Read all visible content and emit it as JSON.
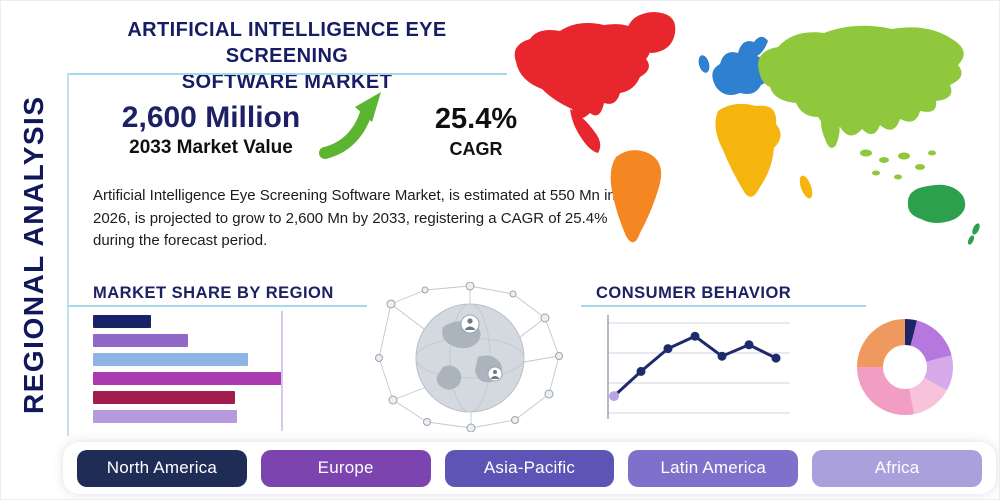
{
  "page": {
    "title_lines": [
      "ARTIFICIAL INTELLIGENCE EYE SCREENING",
      "SOFTWARE MARKET"
    ],
    "vertical_label": "REGIONAL ANALYSIS",
    "description": "Artificial Intelligence Eye Screening Software Market, is estimated at 550 Mn in 2026, is projected to grow to 2,600 Mn by 2033, registering a CAGR of 25.4% during the forecast period."
  },
  "stats": {
    "market_value": "2,600 Million",
    "market_value_caption": "2033 Market Value",
    "cagr": "25.4%",
    "cagr_caption": "CAGR",
    "growth_icon": "arrow-up-right-icon",
    "arrow_green": "#5cb531"
  },
  "sections": {
    "market_share": {
      "title": "MARKET SHARE BY REGION"
    },
    "consumer_behavior": {
      "title": "CONSUMER BEHAVIOR"
    }
  },
  "theme": {
    "navy": "#1b2164",
    "rule_light_blue": "#a6d9ec",
    "text": "#1c1c1c"
  },
  "legend": {
    "items": [
      {
        "label": "North America",
        "color": "#1f2c56"
      },
      {
        "label": "Europe",
        "color": "#7b44ae"
      },
      {
        "label": "Asia-Pacific",
        "color": "#5d55b5"
      },
      {
        "label": "Latin America",
        "color": "#7f70cc"
      },
      {
        "label": "Africa",
        "color": "#a9a0dc"
      }
    ]
  },
  "map": {
    "colors": {
      "north_america": "#e8262d",
      "central_america": "#e8262d",
      "greenland": "#e8262d",
      "south_america": "#f58723",
      "europe": "#2f80d0",
      "uk": "#2f80d0",
      "africa": "#f6b40e",
      "madagascar": "#f6b40e",
      "asia": "#90c83d",
      "india": "#90c83d",
      "se_asia": "#90c83d",
      "japan": "#90c83d",
      "australia": "#2da04e",
      "new_zealand": "#2da04e"
    }
  },
  "chart_data": [
    {
      "id": "market_share_bars",
      "type": "bar",
      "title": "Market Share by Region",
      "orientation": "horizontal",
      "categories": [
        "",
        "",
        "",
        "",
        "",
        ""
      ],
      "values": [
        26,
        43,
        70,
        85,
        64,
        65
      ],
      "xlim": [
        0,
        100
      ],
      "colors": [
        "#1b2368",
        "#9068c8",
        "#8fb4e6",
        "#ab3ab0",
        "#a11d4e",
        "#b79ade"
      ],
      "gridline_at": 85,
      "legend_position": "none"
    },
    {
      "id": "consumer_behavior_line",
      "type": "line",
      "title": "Consumer Behavior",
      "x": [
        1,
        2,
        3,
        4,
        5,
        6,
        7
      ],
      "values": [
        22,
        48,
        72,
        85,
        64,
        76,
        62
      ],
      "ylim": [
        0,
        100
      ],
      "line_color": "#1d2a6b",
      "first_point_color": "#b9a3e3",
      "grid": true,
      "legend_position": "none"
    },
    {
      "id": "region_donut",
      "type": "pie",
      "title": "",
      "donut_hole_ratio": 0.46,
      "slices": [
        {
          "value": 4,
          "color": "#1c2566"
        },
        {
          "value": 17,
          "color": "#b678de"
        },
        {
          "value": 12,
          "color": "#d5a9ea"
        },
        {
          "value": 14,
          "color": "#f8c3da"
        },
        {
          "value": 28,
          "color": "#f29ec4"
        },
        {
          "value": 25,
          "color": "#f0995e"
        }
      ]
    }
  ]
}
